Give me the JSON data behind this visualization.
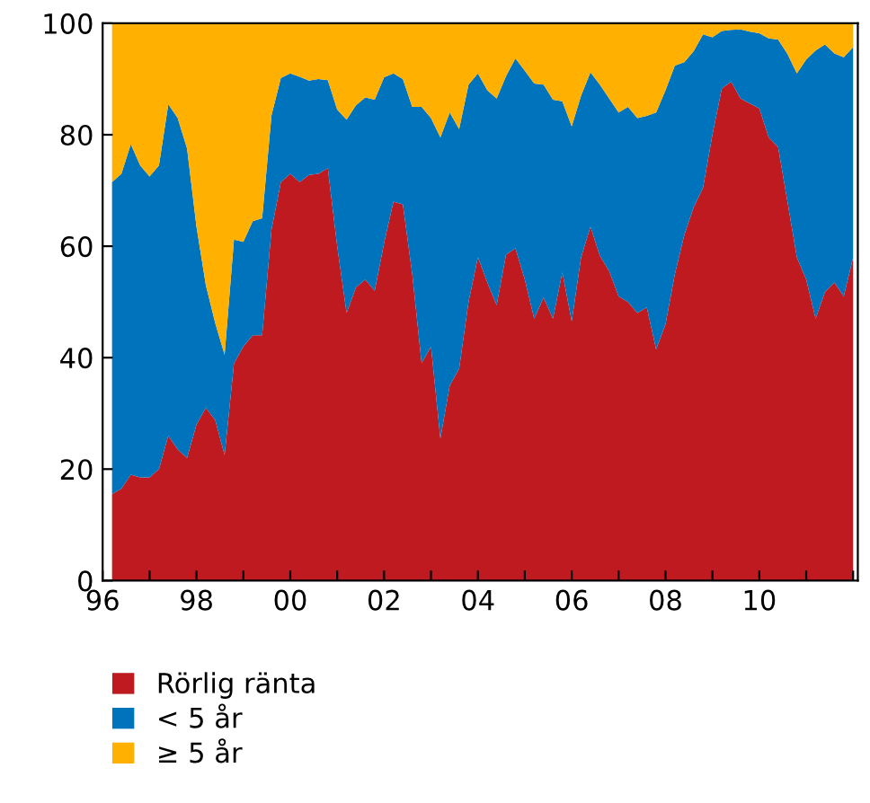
{
  "chart_data": {
    "type": "area",
    "stacked": true,
    "x": [
      1996.2,
      1996.4,
      1996.6,
      1996.8,
      1997.0,
      1997.2,
      1997.4,
      1997.6,
      1997.8,
      1998.0,
      1998.2,
      1998.4,
      1998.6,
      1998.8,
      1999.0,
      1999.2,
      1999.4,
      1999.6,
      1999.8,
      2000.0,
      2000.2,
      2000.4,
      2000.6,
      2000.8,
      2001.0,
      2001.2,
      2001.4,
      2001.6,
      2001.8,
      2002.0,
      2002.2,
      2002.4,
      2002.6,
      2002.8,
      2003.0,
      2003.2,
      2003.4,
      2003.6,
      2003.8,
      2004.0,
      2004.2,
      2004.4,
      2004.6,
      2004.8,
      2005.0,
      2005.2,
      2005.4,
      2005.6,
      2005.8,
      2006.0,
      2006.2,
      2006.4,
      2006.6,
      2006.8,
      2007.0,
      2007.2,
      2007.4,
      2007.6,
      2007.8,
      2008.0,
      2008.2,
      2008.4,
      2008.6,
      2008.8,
      2009.0,
      2009.2,
      2009.4,
      2009.6,
      2009.8,
      2010.0,
      2010.2,
      2010.4,
      2010.6,
      2010.8,
      2011.0,
      2011.2,
      2011.4,
      2011.6,
      2011.8,
      2012.0
    ],
    "series": [
      {
        "name": "Rörlig ränta",
        "color": "#be1a1f",
        "values": [
          15.5,
          16.5,
          19,
          18.5,
          18.5,
          20,
          26,
          23.5,
          22,
          28,
          31,
          28.8,
          22.5,
          39,
          42,
          44,
          44,
          63,
          71.5,
          73,
          71.5,
          72.8,
          73,
          74,
          60,
          48,
          52.6,
          54,
          52,
          60.6,
          68,
          67.5,
          55,
          39,
          42,
          25.5,
          35,
          38,
          50,
          58,
          53.5,
          49.4,
          58.5,
          59.6,
          54,
          47,
          50.8,
          47,
          55.3,
          46.5,
          58,
          63.5,
          58.3,
          55.5,
          51,
          50,
          48,
          49,
          41.5,
          46,
          55,
          62,
          67,
          70.5,
          80,
          88.3,
          89.5,
          86.5,
          85.6,
          84.7,
          79.5,
          77.8,
          68,
          58,
          54,
          47,
          51.8,
          53.5,
          51,
          58
        ]
      },
      {
        "name": "< 5 år",
        "color": "#0073bd",
        "values": [
          56,
          56.5,
          59.3,
          56,
          54,
          54.5,
          59.5,
          59.5,
          55.5,
          35.5,
          22,
          17.4,
          18,
          22.2,
          18.8,
          20.5,
          21,
          20.5,
          18.7,
          18,
          18.9,
          16.9,
          17,
          15.8,
          24.5,
          34.7,
          32.7,
          32.7,
          34.3,
          29.7,
          23,
          22.5,
          30,
          46,
          41,
          54,
          49,
          43,
          39,
          33,
          34.5,
          37.1,
          32,
          34.1,
          37.5,
          42.2,
          38.2,
          39.3,
          30.7,
          35,
          29,
          27.7,
          30.7,
          31,
          33,
          35,
          35,
          34.4,
          42.5,
          42,
          37.4,
          31,
          28,
          27.5,
          17.5,
          10.3,
          9.3,
          12.4,
          12.9,
          13.5,
          17.8,
          19.3,
          26.5,
          33,
          39.5,
          48.1,
          44.4,
          41.1,
          42.9,
          37.7
        ]
      },
      {
        "name": "≥ 5 år",
        "color": "#ffb000",
        "values": [
          28.5,
          27,
          21.7,
          25.5,
          27.5,
          25.5,
          14.5,
          17,
          22.5,
          36.5,
          47,
          53.8,
          59.5,
          38.8,
          39.2,
          35.5,
          35,
          16.5,
          9.8,
          9,
          9.6,
          10.3,
          10,
          10.2,
          15.5,
          17.3,
          14.7,
          13.3,
          13.7,
          9.7,
          9,
          10,
          15,
          15,
          17,
          20.5,
          16,
          19,
          11,
          9,
          12,
          13.5,
          9.5,
          6.3,
          8.5,
          10.8,
          11,
          13.7,
          14,
          18.5,
          13,
          8.8,
          11,
          13.5,
          16,
          15,
          17,
          16.6,
          16,
          12,
          7.6,
          7,
          5,
          2,
          2.5,
          1.4,
          1.2,
          1.1,
          1.5,
          1.8,
          2.7,
          2.9,
          5.5,
          9,
          6.5,
          4.9,
          3.8,
          5.4,
          6.1,
          4.3
        ]
      }
    ],
    "xlim": [
      1996,
      2012.1
    ],
    "xticks": [
      {
        "value": 1996,
        "label": "96"
      },
      {
        "value": 1997,
        "label": null
      },
      {
        "value": 1998,
        "label": "98"
      },
      {
        "value": 1999,
        "label": null
      },
      {
        "value": 2000,
        "label": "00"
      },
      {
        "value": 2001,
        "label": null
      },
      {
        "value": 2002,
        "label": "02"
      },
      {
        "value": 2003,
        "label": null
      },
      {
        "value": 2004,
        "label": "04"
      },
      {
        "value": 2005,
        "label": null
      },
      {
        "value": 2006,
        "label": "06"
      },
      {
        "value": 2007,
        "label": null
      },
      {
        "value": 2008,
        "label": "08"
      },
      {
        "value": 2009,
        "label": null
      },
      {
        "value": 2010,
        "label": "10"
      },
      {
        "value": 2011,
        "label": null
      },
      {
        "value": 2012,
        "label": null
      }
    ],
    "ylim": [
      0,
      100
    ],
    "yticks": [
      0,
      20,
      40,
      60,
      80,
      100
    ],
    "grid": false,
    "legend": "bottom left"
  }
}
